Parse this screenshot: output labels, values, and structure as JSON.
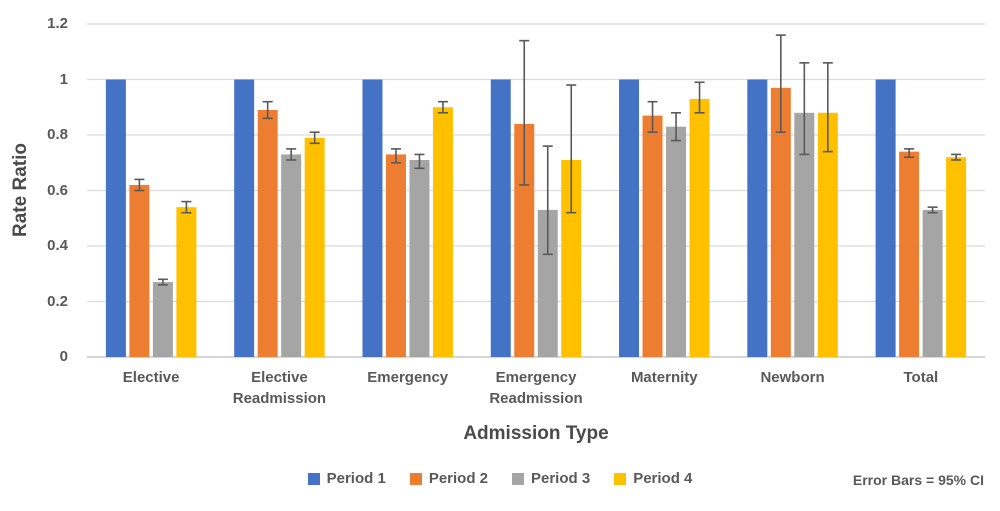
{
  "chart_data": {
    "type": "bar",
    "title": "",
    "xlabel": "Admission Type",
    "ylabel": "Rate Ratio",
    "annotation": "Error Bars = 95% CI",
    "ylim": [
      0,
      1.2
    ],
    "ytick_values": [
      0,
      0.2,
      0.4,
      0.6,
      0.8,
      1,
      1.2
    ],
    "ytick_labels": [
      "0",
      "0.2",
      "0.4",
      "0.6",
      "0.8",
      "1",
      "1.2"
    ],
    "grid": true,
    "legend_position": "bottom-center",
    "error_bars": "95% CI",
    "categories": [
      "Elective",
      "Elective Readmission",
      "Emergency",
      "Emergency Readmission",
      "Maternity",
      "Newborn",
      "Total"
    ],
    "series": [
      {
        "name": "Period 1",
        "color": "#4472C4",
        "values": [
          1,
          1,
          1,
          1,
          1,
          1,
          1
        ],
        "ci_low": null,
        "ci_high": null
      },
      {
        "name": "Period 2",
        "color": "#ED7D31",
        "values": [
          0.62,
          0.89,
          0.73,
          0.84,
          0.87,
          0.97,
          0.74
        ],
        "ci_low": [
          0.6,
          0.86,
          0.7,
          0.62,
          0.81,
          0.81,
          0.72
        ],
        "ci_high": [
          0.64,
          0.92,
          0.75,
          1.14,
          0.92,
          1.16,
          0.75
        ]
      },
      {
        "name": "Period 3",
        "color": "#A5A5A5",
        "values": [
          0.27,
          0.73,
          0.71,
          0.53,
          0.83,
          0.88,
          0.53
        ],
        "ci_low": [
          0.26,
          0.71,
          0.68,
          0.37,
          0.78,
          0.73,
          0.52
        ],
        "ci_high": [
          0.28,
          0.75,
          0.73,
          0.76,
          0.88,
          1.06,
          0.54
        ]
      },
      {
        "name": "Period 4",
        "color": "#FFC000",
        "values": [
          0.54,
          0.79,
          0.9,
          0.71,
          0.93,
          0.88,
          0.72
        ],
        "ci_low": [
          0.52,
          0.77,
          0.88,
          0.52,
          0.88,
          0.74,
          0.71
        ],
        "ci_high": [
          0.56,
          0.81,
          0.92,
          0.98,
          0.99,
          1.06,
          0.73
        ]
      }
    ],
    "colors": {
      "error_bar": "#595959",
      "gridline": "#DBDBDB",
      "axis_line": "#C9C9C9",
      "tick_text": "#595959",
      "title_text": "#4A4A4A",
      "background": "#FFFFFF"
    }
  }
}
